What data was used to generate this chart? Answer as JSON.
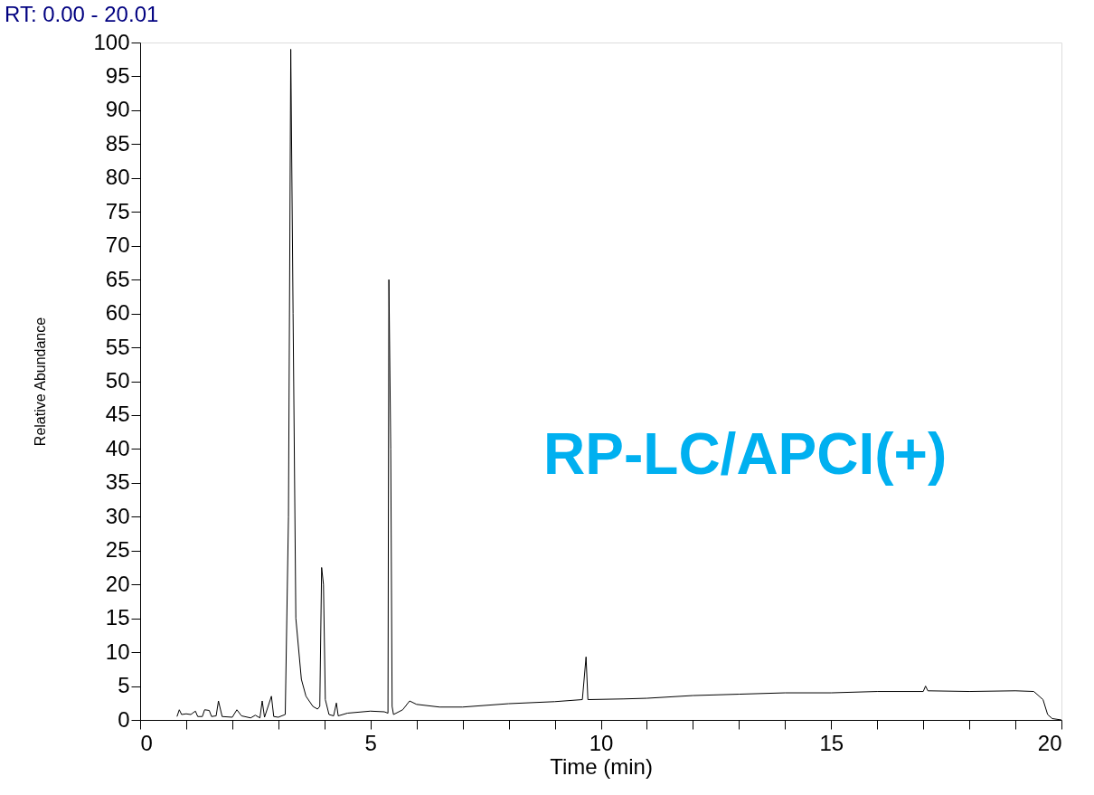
{
  "chart_data": {
    "type": "line",
    "title": "RT: 0.00 - 20.01",
    "xlabel": "Time (min)",
    "ylabel": "Relative Abundance",
    "annotations": [
      "RP-LC/APCI(+)"
    ],
    "x": [
      0.8,
      0.85,
      0.9,
      1.0,
      1.1,
      1.2,
      1.25,
      1.35,
      1.4,
      1.5,
      1.55,
      1.65,
      1.7,
      1.78,
      2.0,
      2.1,
      2.2,
      2.4,
      2.5,
      2.6,
      2.65,
      2.7,
      2.85,
      2.9,
      3.0,
      3.15,
      3.22,
      3.27,
      3.32,
      3.38,
      3.5,
      3.6,
      3.75,
      3.85,
      3.9,
      3.94,
      3.98,
      4.02,
      4.1,
      4.2,
      4.26,
      4.3,
      4.5,
      5.0,
      5.3,
      5.38,
      5.4,
      5.44,
      5.47,
      5.5,
      5.7,
      5.85,
      6.0,
      6.5,
      7.0,
      8.0,
      9.0,
      9.6,
      9.68,
      9.72,
      10.5,
      11.0,
      12.0,
      13.0,
      14.0,
      15.0,
      16.0,
      17.0,
      17.05,
      17.1,
      18.0,
      19.0,
      19.4,
      19.6,
      19.7,
      19.8,
      20.0
    ],
    "series": [
      {
        "color": "#000000",
        "values": [
          0.5,
          1.5,
          0.8,
          0.9,
          0.8,
          1.3,
          0.5,
          0.5,
          1.5,
          1.4,
          0.5,
          0.6,
          2.8,
          0.5,
          0.4,
          1.5,
          0.6,
          0.3,
          0.7,
          0.3,
          2.8,
          0.4,
          3.5,
          0.5,
          0.4,
          0.8,
          30,
          99,
          60,
          15,
          6,
          3.5,
          2,
          1.6,
          2,
          22.5,
          20,
          3,
          0.8,
          0.6,
          2.5,
          0.6,
          1,
          1.3,
          1.2,
          1.0,
          65,
          40,
          2,
          0.8,
          1.5,
          2.8,
          2.3,
          1.9,
          1.9,
          2.4,
          2.7,
          3.0,
          9.3,
          3.0,
          3.1,
          3.2,
          3.6,
          3.8,
          4.0,
          4.0,
          4.2,
          4.2,
          5,
          4.3,
          4.2,
          4.3,
          4.2,
          3.0,
          0.8,
          0.2,
          0
        ]
      }
    ],
    "xlim": [
      0,
      20
    ],
    "xticks": [
      0,
      {
        "value": 1,
        "label": null
      },
      {
        "value": 2,
        "label": null
      },
      {
        "value": 3,
        "label": null
      },
      {
        "value": 4,
        "label": null
      },
      5,
      {
        "value": 6,
        "label": null
      },
      {
        "value": 7,
        "label": null
      },
      {
        "value": 8,
        "label": null
      },
      {
        "value": 9,
        "label": null
      },
      10,
      {
        "value": 11,
        "label": null
      },
      {
        "value": 12,
        "label": null
      },
      {
        "value": 13,
        "label": null
      },
      {
        "value": 14,
        "label": null
      },
      15,
      {
        "value": 16,
        "label": null
      },
      {
        "value": 17,
        "label": null
      },
      {
        "value": 18,
        "label": null
      },
      {
        "value": 19,
        "label": null
      },
      20
    ],
    "ylim": [
      0,
      100
    ],
    "yticks": [
      0,
      5,
      10,
      15,
      20,
      25,
      30,
      35,
      40,
      45,
      50,
      55,
      60,
      65,
      70,
      75,
      80,
      85,
      90,
      95,
      100
    ],
    "grid": false,
    "marker": "none",
    "line_style": "solid"
  }
}
